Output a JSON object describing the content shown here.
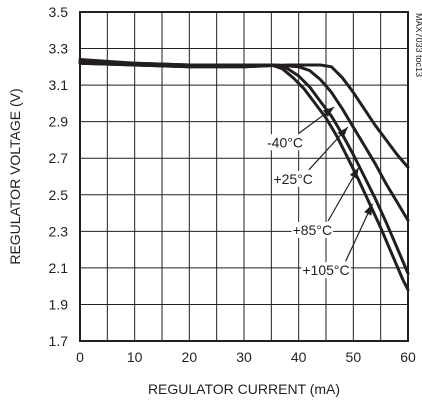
{
  "chart_data": {
    "type": "line",
    "title": "",
    "xlabel": "REGULATOR CURRENT (mA)",
    "ylabel": "REGULATOR VOLTAGE (V)",
    "xlim": [
      0,
      60
    ],
    "ylim": [
      1.7,
      3.5
    ],
    "xticks": [
      0,
      10,
      20,
      30,
      40,
      50,
      60
    ],
    "yticks": [
      1.7,
      1.9,
      2.1,
      2.3,
      2.5,
      2.7,
      2.9,
      3.1,
      3.3,
      3.5
    ],
    "ytick_labels": [
      "1.7",
      "1.9",
      "2.1",
      "2.3",
      "2.5",
      "2.7",
      "2.9",
      "3.1",
      "3.3",
      "3.5"
    ],
    "grid": true,
    "watermark": "MAX7033 toc13",
    "colors": {
      "line": "#231f20",
      "grid": "#231f20",
      "background": "#ffffff"
    },
    "series": [
      {
        "name": "-40°C",
        "x": [
          0,
          10,
          20,
          30,
          38,
          42,
          44,
          46,
          48,
          50,
          52,
          54,
          56,
          58,
          60
        ],
        "y": [
          3.22,
          3.21,
          3.2,
          3.2,
          3.21,
          3.21,
          3.21,
          3.2,
          3.14,
          3.06,
          2.97,
          2.88,
          2.8,
          2.72,
          2.65
        ]
      },
      {
        "name": "+25°C",
        "x": [
          0,
          10,
          20,
          30,
          36,
          40,
          42,
          44,
          46,
          48,
          50,
          52,
          54,
          56,
          58,
          60
        ],
        "y": [
          3.22,
          3.21,
          3.2,
          3.2,
          3.21,
          3.2,
          3.18,
          3.13,
          3.06,
          2.97,
          2.87,
          2.77,
          2.67,
          2.56,
          2.46,
          2.36
        ]
      },
      {
        "name": "+85°C",
        "x": [
          0,
          10,
          20,
          30,
          36,
          38,
          40,
          42,
          44,
          46,
          48,
          50,
          52,
          54,
          56,
          58,
          60
        ],
        "y": [
          3.23,
          3.22,
          3.21,
          3.21,
          3.21,
          3.19,
          3.15,
          3.09,
          3.01,
          2.93,
          2.83,
          2.72,
          2.6,
          2.48,
          2.35,
          2.21,
          2.07
        ]
      },
      {
        "name": "+105°C",
        "x": [
          0,
          10,
          20,
          30,
          35,
          37,
          39,
          41,
          43,
          45,
          47,
          49,
          51,
          53,
          55,
          57,
          59,
          60
        ],
        "y": [
          3.24,
          3.22,
          3.21,
          3.21,
          3.21,
          3.19,
          3.14,
          3.08,
          3.0,
          2.92,
          2.82,
          2.7,
          2.58,
          2.45,
          2.32,
          2.18,
          2.04,
          1.98
        ]
      }
    ],
    "annotations": [
      {
        "text": "-40°C",
        "x": 37.5,
        "y": 2.76,
        "arrow_to": [
          46.5,
          2.98
        ]
      },
      {
        "text": "+25°C",
        "x": 39,
        "y": 2.56,
        "arrow_to": [
          49,
          2.87
        ]
      },
      {
        "text": "+85°C",
        "x": 42.5,
        "y": 2.28,
        "arrow_to": [
          51,
          2.65
        ]
      },
      {
        "text": "+105°C",
        "x": 45,
        "y": 2.06,
        "arrow_to": [
          53.5,
          2.45
        ]
      }
    ]
  }
}
